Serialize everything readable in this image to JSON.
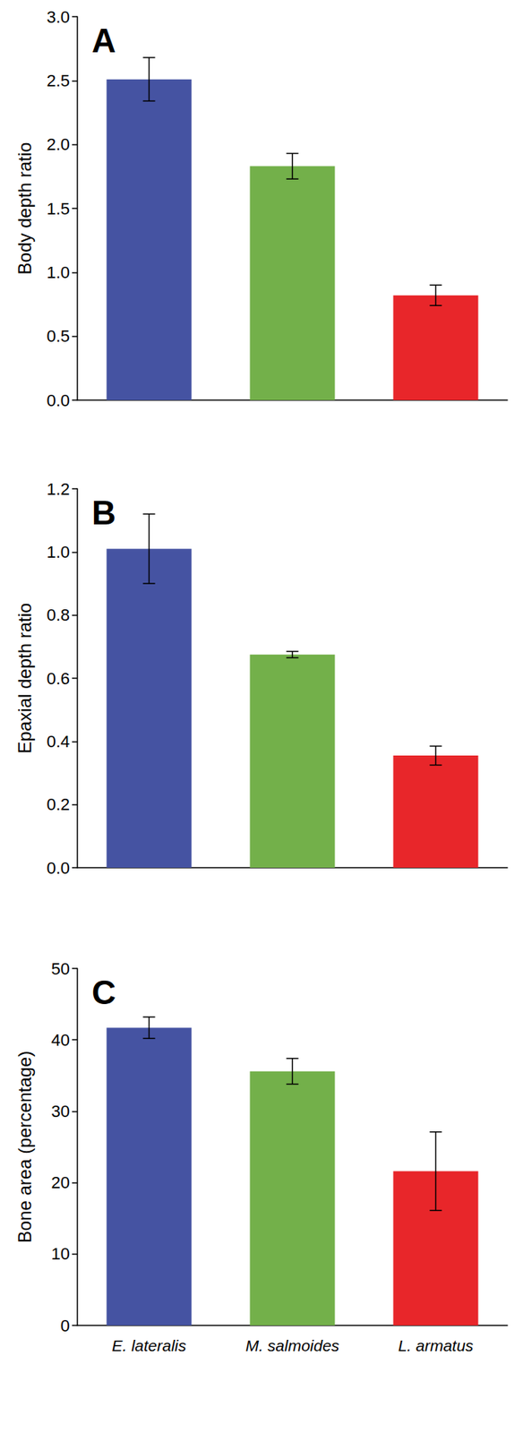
{
  "chart_data": [
    {
      "type": "bar",
      "title": "A",
      "y_label": "Body depth ratio",
      "categories": [
        "E. lateralis",
        "M. salmoides",
        "L. armatus"
      ],
      "values": [
        2.51,
        1.83,
        0.82
      ],
      "errors": [
        0.17,
        0.1,
        0.08
      ],
      "colors": [
        "#4553a2",
        "#73b04a",
        "#e8262a"
      ],
      "ylim": [
        0,
        3
      ],
      "yticks": [
        {
          "value": 0,
          "label": "0.0"
        },
        0.5,
        {
          "value": 1,
          "label": "1.0"
        },
        1.5,
        {
          "value": 2,
          "label": "2.0"
        },
        2.5,
        {
          "value": 3,
          "label": "3.0"
        }
      ],
      "grid": false,
      "tick_labels": "y"
    },
    {
      "type": "bar",
      "title": "B",
      "y_label": "Epaxial depth ratio",
      "categories": [
        "E. lateralis",
        "M. salmoides",
        "L. armatus"
      ],
      "values": [
        1.01,
        0.675,
        0.355
      ],
      "errors": [
        0.11,
        0.01,
        0.03
      ],
      "colors": [
        "#4553a2",
        "#73b04a",
        "#e8262a"
      ],
      "ylim": [
        0,
        1.2
      ],
      "yticks": [
        {
          "value": 0,
          "label": "0.0"
        },
        0.2,
        0.4,
        0.6,
        0.8,
        {
          "value": 1,
          "label": "1.0"
        },
        1.2
      ],
      "grid": false,
      "tick_labels": "y"
    },
    {
      "type": "bar",
      "title": "C",
      "y_label": "Bone area (percentage)",
      "categories": [
        "E. lateralis",
        "M. salmoides",
        "L. armatus"
      ],
      "values": [
        41.7,
        35.6,
        21.6
      ],
      "errors": [
        1.5,
        1.8,
        5.5
      ],
      "colors": [
        "#4553a2",
        "#73b04a",
        "#e8262a"
      ],
      "ylim": [
        0,
        50
      ],
      "yticks": [
        0,
        10,
        20,
        30,
        40,
        50
      ],
      "grid": false
    }
  ]
}
